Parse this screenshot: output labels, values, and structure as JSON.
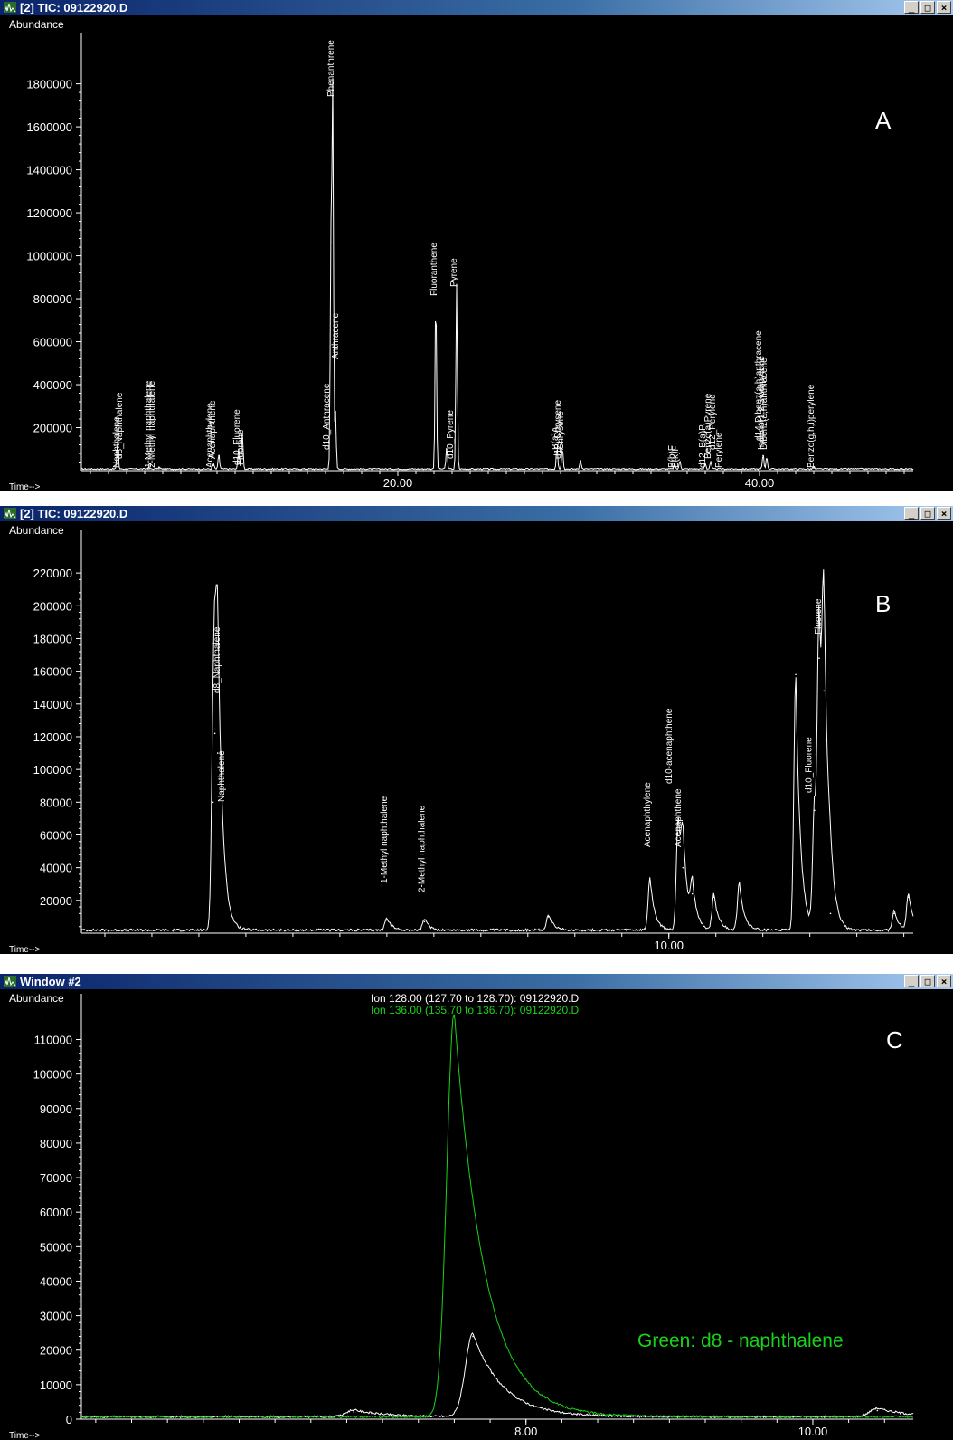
{
  "windows": [
    {
      "id": "A",
      "title": "[2] TIC: 09122920.D",
      "panel_letter": "A",
      "yaxis_label": "Abundance",
      "xaxis_label": "Time-->",
      "y_ticks": [
        "200000",
        "400000",
        "600000",
        "800000",
        "1000000",
        "1200000",
        "1400000",
        "1600000",
        "1800000"
      ],
      "x_ticks": [
        "20.00",
        "40.00"
      ],
      "peak_labels": [
        "Naphthalene",
        "d8_Naphthalene",
        "1-Methyl naphthalene",
        "2-Methyl naphthalene",
        "Acenaphthylene",
        "Acenaphthene",
        "d10_Fluorene",
        "Fluorene",
        "Phenanthrene",
        "d10_Anthracene",
        "Anthracene",
        "Fluoranthene",
        "Pyrene",
        "d10_Pyrene",
        "B(a)A",
        "d12_Chrysene",
        "Chrysene",
        "B(b)F",
        "B(k)F",
        "d12_B(a)P",
        "Benzo(a)Pyrene",
        "Perylene",
        "d12_Perylene",
        "d14-Dibenz(a,h)anthracene",
        "Indeno(1,2,3-cd)pyrene",
        "Dibenz(a,h)anthracene",
        "Benzo(g,h,i)perylene"
      ]
    },
    {
      "id": "B",
      "title": "[2] TIC: 09122920.D",
      "panel_letter": "B",
      "yaxis_label": "Abundance",
      "xaxis_label": "Time-->",
      "y_ticks": [
        "20000",
        "40000",
        "60000",
        "80000",
        "100000",
        "120000",
        "140000",
        "160000",
        "180000",
        "200000",
        "220000"
      ],
      "x_ticks": [
        "10.00"
      ],
      "peak_labels": [
        "d8_Naphthalene",
        "Naphthalene",
        "1-Methyl naphthalene",
        "2-Methyl naphthalene",
        "Acenaphthylene",
        "d10-acenaphthene",
        "Acenaphthene",
        "Fluorene",
        "d10_Fluorene"
      ]
    },
    {
      "id": "C",
      "title": "Window #2",
      "panel_letter": "C",
      "yaxis_label": "Abundance",
      "xaxis_label": "Time-->",
      "y_ticks": [
        "0",
        "10000",
        "20000",
        "30000",
        "40000",
        "50000",
        "60000",
        "70000",
        "80000",
        "90000",
        "100000",
        "110000"
      ],
      "x_ticks": [
        "8.00",
        "10.00"
      ],
      "legend": [
        "Ion 128.00 (127.70 to 128.70): 09122920.D",
        "Ion 136.00 (135.70 to 136.70): 09122920.D"
      ],
      "annotation": "Green: d8 - naphthalene"
    }
  ],
  "colors": {
    "background": "#000000",
    "trace": "#ffffff",
    "green": "#19d319",
    "titlebar": "#0a246a"
  },
  "window_buttons": [
    "_",
    "□",
    "×"
  ],
  "chart_data": [
    {
      "type": "line",
      "title": "",
      "ylabel": "Abundance",
      "xlabel": "Time-->",
      "ylim": [
        0,
        1950000
      ],
      "xlim": [
        2.5,
        48.5
      ],
      "series": [
        {
          "name": "",
          "peaks": [
            {
              "x": 4.5,
              "y": 120000
            },
            {
              "x": 6.2,
              "y": 8000
            },
            {
              "x": 6.8,
              "y": 9000
            },
            {
              "x": 9.8,
              "y": 25000
            },
            {
              "x": 10.1,
              "y": 70000
            },
            {
              "x": 11.2,
              "y": 100000
            },
            {
              "x": 11.4,
              "y": 170000
            },
            {
              "x": 16.3,
              "y": 1060000
            },
            {
              "x": 16.4,
              "y": 1770000
            },
            {
              "x": 16.55,
              "y": 270000
            },
            {
              "x": 22.1,
              "y": 820000
            },
            {
              "x": 22.7,
              "y": 100000
            },
            {
              "x": 23.25,
              "y": 860000
            },
            {
              "x": 28.8,
              "y": 105000
            },
            {
              "x": 29.1,
              "y": 100000
            },
            {
              "x": 30.1,
              "y": 45000
            },
            {
              "x": 35.3,
              "y": 25000
            },
            {
              "x": 35.6,
              "y": 40000
            },
            {
              "x": 37.0,
              "y": 28000
            },
            {
              "x": 37.3,
              "y": 35000
            },
            {
              "x": 40.2,
              "y": 70000
            },
            {
              "x": 40.4,
              "y": 55000
            },
            {
              "x": 43.0,
              "y": 12000
            }
          ]
        }
      ],
      "peak_label_x": [
        4.6,
        4.75,
        6.35,
        6.55,
        9.75,
        9.9,
        11.25,
        11.45,
        16.45,
        16.2,
        16.7,
        22.15,
        23.25,
        23.05,
        28.85,
        29.0,
        29.15,
        35.3,
        35.5,
        37.0,
        37.3,
        37.9,
        37.55,
        40.1,
        40.25,
        40.4,
        43.0
      ]
    },
    {
      "type": "line",
      "title": "",
      "ylabel": "Abundance",
      "xlabel": "Time-->",
      "ylim": [
        0,
        235000
      ],
      "xlim": [
        3.75,
        12.6
      ],
      "series": [
        {
          "name": "",
          "peaks": [
            {
              "x": 5.17,
              "y": 122000
            },
            {
              "x": 5.2,
              "y": 110000
            },
            {
              "x": 5.15,
              "y": 80000
            },
            {
              "x": 7.0,
              "y": 8000
            },
            {
              "x": 7.4,
              "y": 7000
            },
            {
              "x": 8.72,
              "y": 10000
            },
            {
              "x": 9.8,
              "y": 32000
            },
            {
              "x": 10.1,
              "y": 70000
            },
            {
              "x": 10.15,
              "y": 40000
            },
            {
              "x": 10.25,
              "y": 24000
            },
            {
              "x": 10.48,
              "y": 22000
            },
            {
              "x": 10.75,
              "y": 30000
            },
            {
              "x": 11.35,
              "y": 158000
            },
            {
              "x": 11.6,
              "y": 168000
            },
            {
              "x": 11.55,
              "y": 75000
            },
            {
              "x": 11.65,
              "y": 148000
            },
            {
              "x": 11.72,
              "y": 12000
            },
            {
              "x": 12.4,
              "y": 12000
            },
            {
              "x": 12.55,
              "y": 22000
            }
          ]
        }
      ],
      "peak_label_x": [
        5.22,
        5.27,
        7.0,
        7.4,
        9.8,
        10.03,
        10.13,
        11.62,
        11.52
      ]
    },
    {
      "type": "line",
      "title": "",
      "ylabel": "Abundance",
      "xlabel": "Time-->",
      "ylim": [
        0,
        118000
      ],
      "xlim": [
        4.9,
        10.7
      ],
      "series": [
        {
          "name": "Ion 128.00 (127.70 to 128.70): 09122920.D",
          "peaks": [
            {
              "x": 7.63,
              "y": 24000
            },
            {
              "x": 6.8,
              "y": 2000
            },
            {
              "x": 10.45,
              "y": 2500
            }
          ]
        },
        {
          "name": "Ion 136.00 (135.70 to 136.70): 09122920.D",
          "peaks": [
            {
              "x": 7.5,
              "y": 117000
            }
          ]
        }
      ]
    }
  ]
}
